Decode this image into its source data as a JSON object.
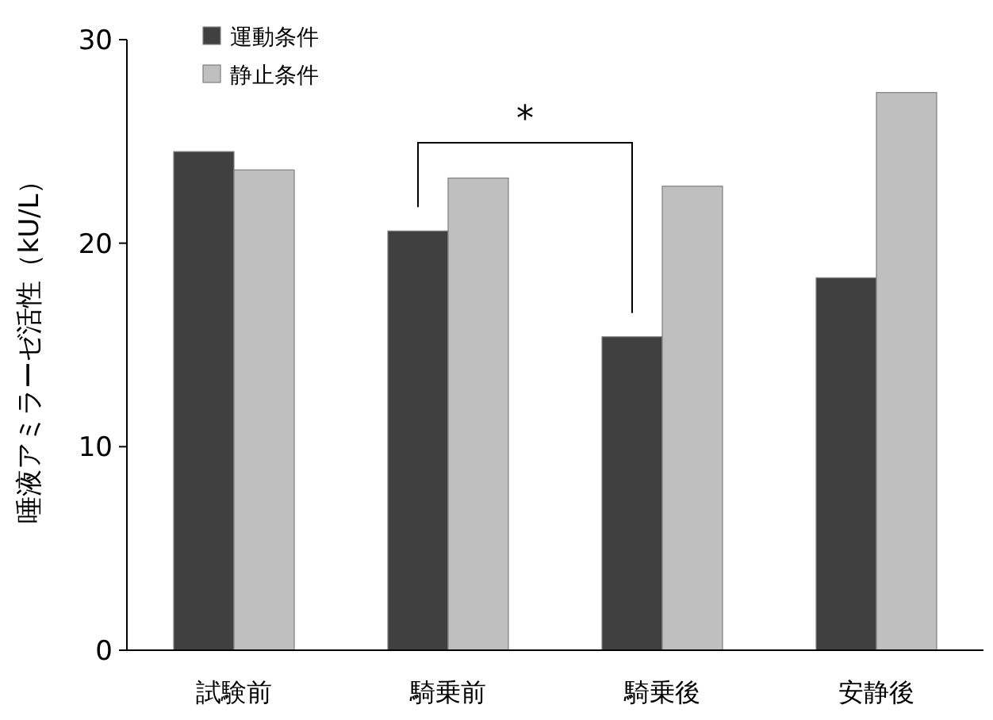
{
  "chart_data": {
    "type": "bar",
    "categories": [
      "試験前",
      "騎乗前",
      "騎乗後",
      "安静後"
    ],
    "series": [
      {
        "name": "運動条件",
        "color": "#404040",
        "values": [
          24.5,
          20.6,
          15.4,
          18.3
        ]
      },
      {
        "name": "静止条件",
        "color": "#bfbfbf",
        "values": [
          23.6,
          23.2,
          22.8,
          27.4
        ]
      }
    ],
    "ylabel": "唾液アミラーゼ活性（kU/L）",
    "ylim": [
      0,
      30
    ],
    "yticks": [
      0,
      10,
      20,
      30
    ],
    "legend": "top left",
    "grid": false,
    "annotations": [
      "*"
    ]
  }
}
